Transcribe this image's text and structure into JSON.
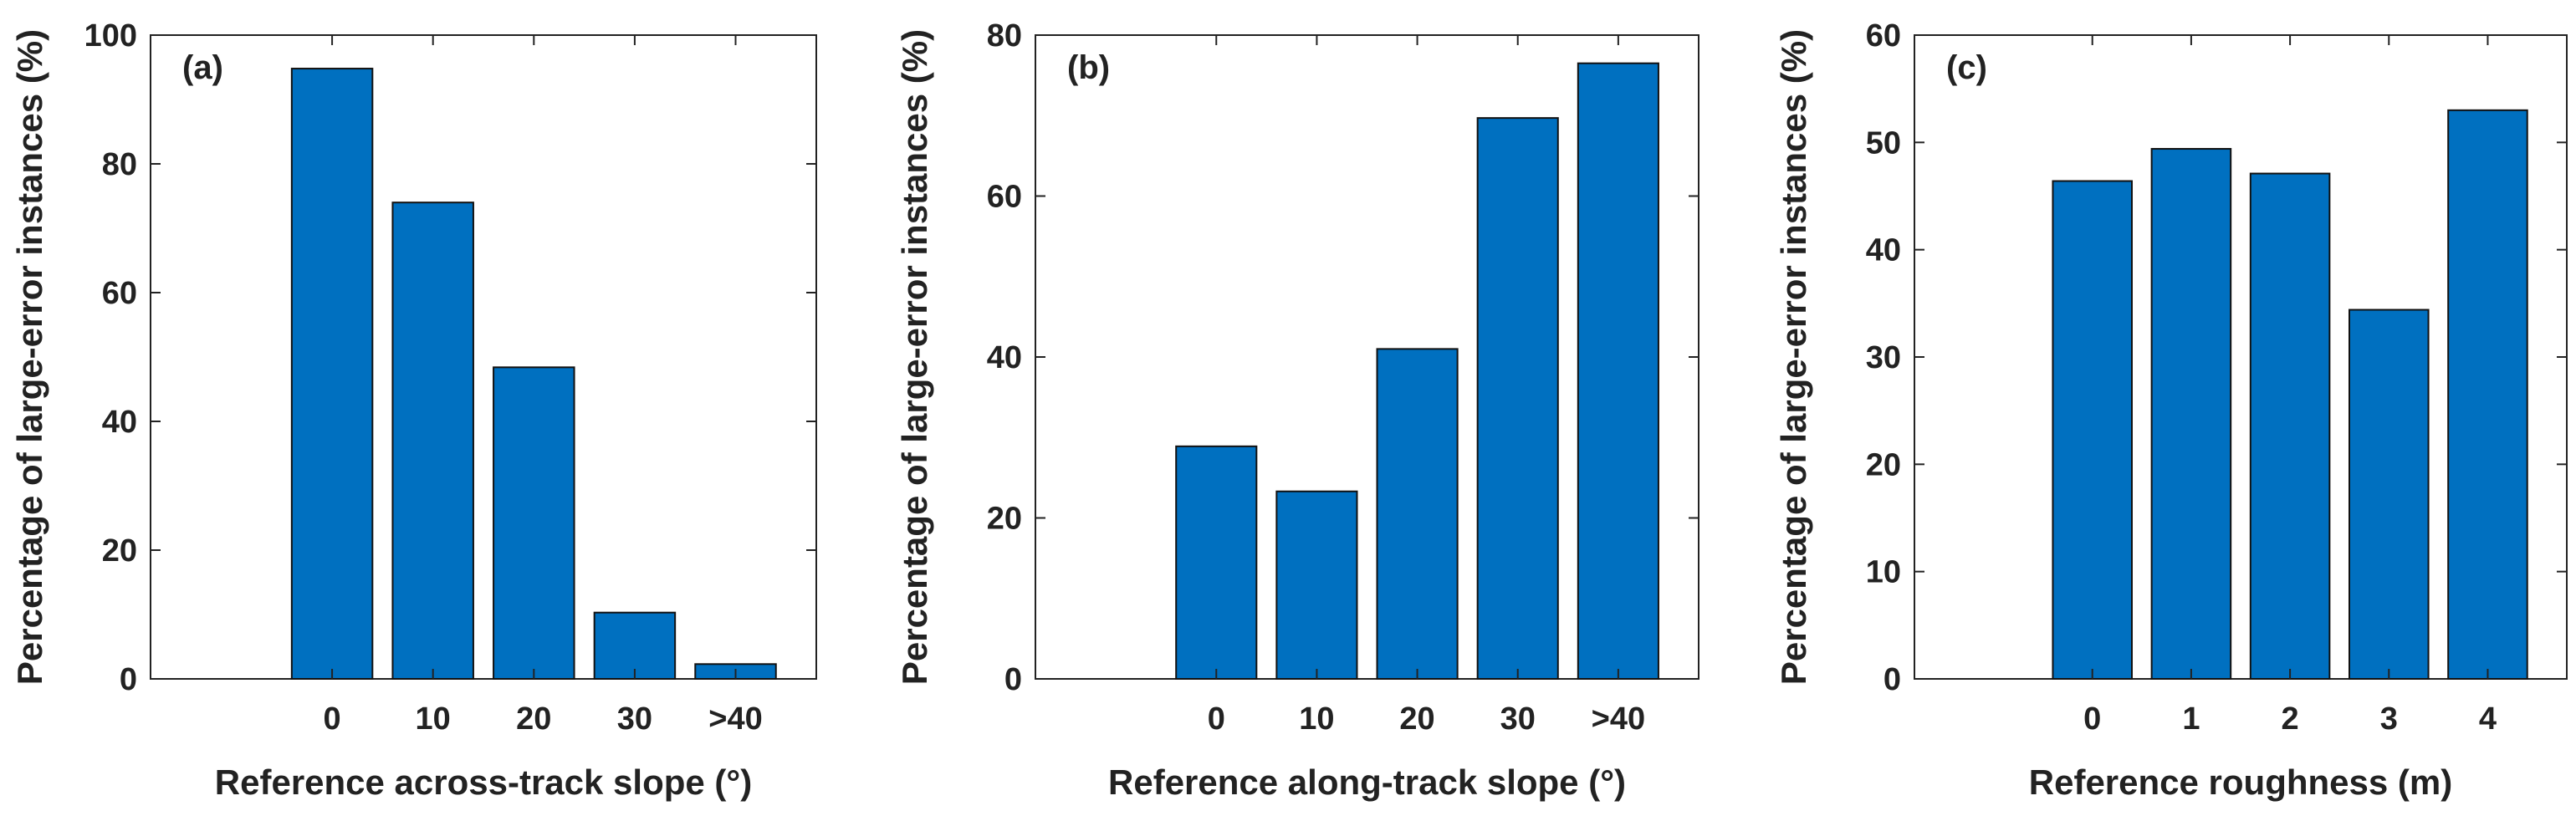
{
  "chart_data": [
    {
      "type": "bar",
      "panel_label": "(a)",
      "categories": [
        "0",
        "10",
        "20",
        "30",
        ">40"
      ],
      "values": [
        94.8,
        74.0,
        48.4,
        10.3,
        2.3
      ],
      "xlabel": "Reference across-track slope (°)",
      "ylabel": "Percentage of large-error instances (%)",
      "ylim": [
        0,
        100
      ],
      "yticks": [
        "0",
        "20",
        "40",
        "60",
        "80",
        "100"
      ],
      "bar_color": "#0070c0",
      "grid": false
    },
    {
      "type": "bar",
      "panel_label": "(b)",
      "categories": [
        "0",
        "10",
        "20",
        "30",
        ">40"
      ],
      "values": [
        28.9,
        23.3,
        41.0,
        69.7,
        76.5
      ],
      "xlabel": "Reference along-track slope (°)",
      "ylabel": "Percentage of large-error instances (%)",
      "ylim": [
        0,
        80
      ],
      "yticks": [
        "0",
        "20",
        "40",
        "60",
        "80"
      ],
      "bar_color": "#0070c0",
      "grid": false
    },
    {
      "type": "bar",
      "panel_label": "(c)",
      "categories": [
        "0",
        "1",
        "2",
        "3",
        "4"
      ],
      "values": [
        46.4,
        49.4,
        47.1,
        34.4,
        53.0
      ],
      "xlabel": "Reference roughness (m)",
      "ylabel": "Percentage of large-error instances (%)",
      "ylim": [
        0,
        60
      ],
      "yticks": [
        "0",
        "10",
        "20",
        "30",
        "40",
        "50",
        "60"
      ],
      "bar_color": "#0070c0",
      "grid": false
    }
  ]
}
